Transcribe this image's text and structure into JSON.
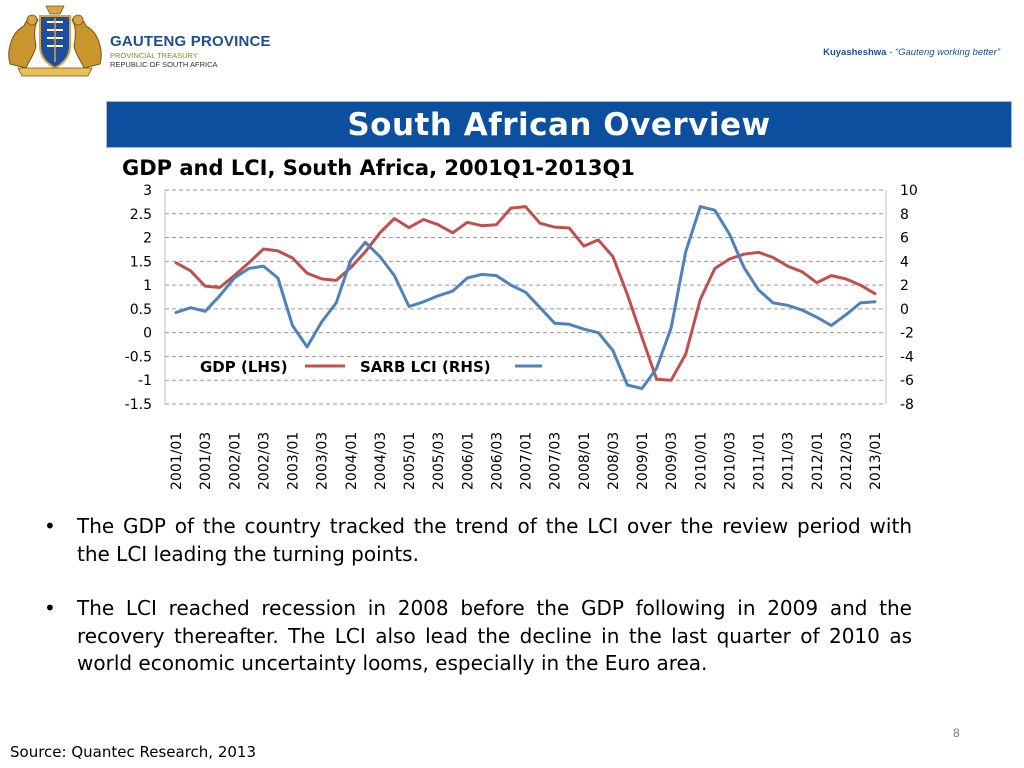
{
  "header": {
    "org_name": "GAUTENG PROVINCE",
    "org_sub1": "PROVINCIAL TREASURY",
    "org_sub2": "REPUBLIC OF SOUTH AFRICA",
    "tagline_bold": "Kuyasheshwa",
    "tagline_rest": " - “Gauteng working better”"
  },
  "banner": {
    "title": "South African Overview"
  },
  "chart_data": {
    "type": "line",
    "title": "GDP and LCI, South Africa, 2001Q1-2013Q1",
    "xlabel": "",
    "ylabel_left": "",
    "ylabel_right": "",
    "ylim_left": [
      -1.5,
      3
    ],
    "ylim_right": [
      -8,
      10
    ],
    "yticks_left": [
      "3",
      "2.5",
      "2",
      "1.5",
      "1",
      "0.5",
      "0",
      "-0.5",
      "-1",
      "-1.5"
    ],
    "yticks_right": [
      "10",
      "8",
      "6",
      "4",
      "2",
      "0",
      "-2",
      "-4",
      "-6",
      "-8"
    ],
    "grid": true,
    "legend_position": "lower-center",
    "categories": [
      "2001/01",
      "2001/02",
      "2001/03",
      "2001/04",
      "2002/01",
      "2002/02",
      "2002/03",
      "2002/04",
      "2003/01",
      "2003/02",
      "2003/03",
      "2003/04",
      "2004/01",
      "2004/02",
      "2004/03",
      "2004/04",
      "2005/01",
      "2005/02",
      "2005/03",
      "2005/04",
      "2006/01",
      "2006/02",
      "2006/03",
      "2006/04",
      "2007/01",
      "2007/02",
      "2007/03",
      "2007/04",
      "2008/01",
      "2008/02",
      "2008/03",
      "2008/04",
      "2009/01",
      "2009/02",
      "2009/03",
      "2009/04",
      "2010/01",
      "2010/02",
      "2010/03",
      "2010/04",
      "2011/01",
      "2011/02",
      "2011/03",
      "2011/04",
      "2012/01",
      "2012/02",
      "2012/03",
      "2012/04",
      "2013/01"
    ],
    "tick_labels": [
      "2001/01",
      "2001/03",
      "2002/01",
      "2002/03",
      "2003/01",
      "2003/03",
      "2004/01",
      "2004/03",
      "2005/01",
      "2005/03",
      "2006/01",
      "2006/03",
      "2007/01",
      "2007/03",
      "2008/01",
      "2008/03",
      "2009/01",
      "2009/03",
      "2010/01",
      "2010/03",
      "2011/01",
      "2011/03",
      "2012/01",
      "2012/03",
      "2013/01"
    ],
    "series": [
      {
        "name": "GDP (LHS)",
        "axis": "left",
        "color": "#c0504d",
        "values": [
          1.47,
          1.3,
          0.98,
          0.95,
          1.2,
          1.47,
          1.76,
          1.72,
          1.57,
          1.25,
          1.13,
          1.1,
          1.37,
          1.7,
          2.1,
          2.4,
          2.21,
          2.38,
          2.27,
          2.1,
          2.32,
          2.25,
          2.27,
          2.62,
          2.65,
          2.3,
          2.22,
          2.2,
          1.82,
          1.95,
          1.6,
          0.8,
          -0.1,
          -0.98,
          -1.0,
          -0.45,
          0.7,
          1.35,
          1.55,
          1.65,
          1.69,
          1.58,
          1.4,
          1.28,
          1.05,
          1.2,
          1.13,
          1.0,
          0.82
        ]
      },
      {
        "name": "SARB LCI (RHS)",
        "axis": "right",
        "color": "#4f81bd",
        "values": [
          -0.3,
          0.1,
          -0.2,
          1.1,
          2.6,
          3.4,
          3.6,
          2.6,
          -1.4,
          -3.2,
          -1.1,
          0.5,
          4.1,
          5.6,
          4.4,
          2.8,
          0.2,
          0.6,
          1.1,
          1.5,
          2.6,
          2.9,
          2.8,
          2.0,
          1.4,
          0.1,
          -1.2,
          -1.3,
          -1.7,
          -2.0,
          -3.5,
          -6.4,
          -6.7,
          -5.0,
          -1.6,
          4.8,
          8.6,
          8.3,
          6.3,
          3.5,
          1.6,
          0.5,
          0.3,
          -0.1,
          -0.7,
          -1.4,
          -0.5,
          0.5,
          0.6
        ]
      }
    ]
  },
  "bullets": [
    "The GDP of the country tracked the trend of the LCI over the review period with the LCI leading the turning points.",
    "The LCI reached recession in 2008 before the GDP following in 2009 and the recovery thereafter. The LCI also lead the decline in the last quarter of 2010 as world economic uncertainty looms, especially in the Euro area."
  ],
  "bullet_symbol": "•",
  "page_number": "8",
  "source": "Source: Quantec Research, 2013"
}
